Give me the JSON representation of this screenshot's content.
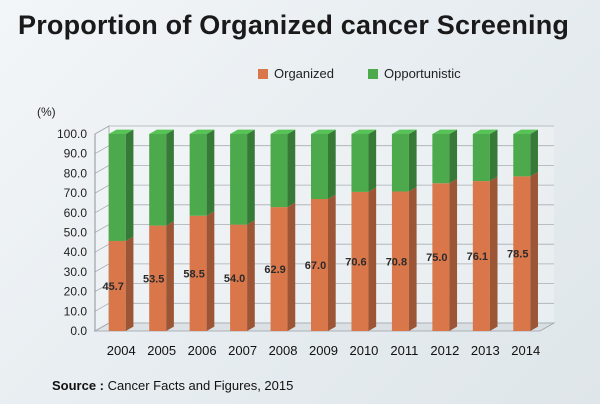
{
  "title": "Proportion of Organized cancer Screening",
  "source": {
    "label": "Source :",
    "text": "Cancer Facts and Figures, 2015"
  },
  "chart_data": {
    "type": "bar",
    "stacked": true,
    "title": "Proportion of Organized cancer Screening",
    "ylabel": "(%)",
    "xlabel": "",
    "ylim": [
      0,
      100
    ],
    "yticks": [
      "0.0",
      "10.0",
      "20.0",
      "30.0",
      "40.0",
      "50.0",
      "60.0",
      "70.0",
      "80.0",
      "90.0",
      "100.0"
    ],
    "categories": [
      "2004",
      "2005",
      "2006",
      "2007",
      "2008",
      "2009",
      "2010",
      "2011",
      "2012",
      "2013",
      "2014"
    ],
    "series": [
      {
        "name": "Organized",
        "color": "#d9774a",
        "values": [
          45.7,
          53.5,
          58.5,
          54.0,
          62.9,
          67.0,
          70.6,
          70.8,
          75.0,
          76.1,
          78.5
        ],
        "labels": [
          "45.7",
          "53.5",
          "58.5",
          "54.0",
          "62.9",
          "67.0",
          "70.6",
          "70.8",
          "75.0",
          "76.1",
          "78.5"
        ]
      },
      {
        "name": "Opportunistic",
        "color": "#4caa4c",
        "values": [
          54.3,
          46.5,
          41.5,
          46.0,
          37.1,
          33.0,
          29.4,
          29.2,
          25.0,
          23.9,
          21.5
        ]
      }
    ],
    "legend_position": "top",
    "grid": true
  }
}
